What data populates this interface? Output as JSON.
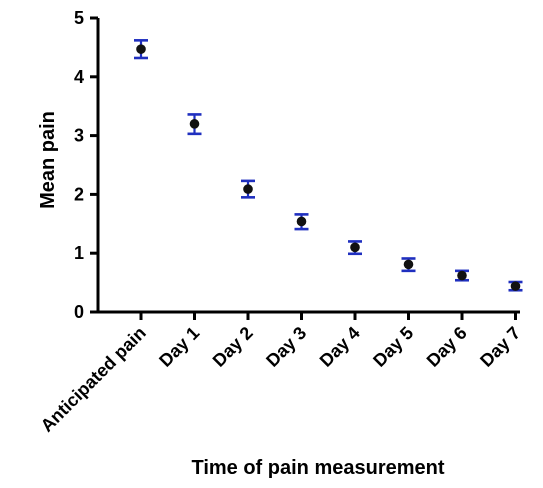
{
  "chart_data": {
    "type": "scatter",
    "title": "",
    "xlabel": "Time of pain measurement",
    "ylabel": "Mean pain",
    "categories": [
      "Anticipated pain",
      "Day 1",
      "Day 2",
      "Day 3",
      "Day 4",
      "Day 5",
      "Day 6",
      "Day 7"
    ],
    "series": [
      {
        "values": [
          4.47,
          3.2,
          2.09,
          1.54,
          1.1,
          0.81,
          0.62,
          0.44
        ],
        "error_low": [
          4.32,
          3.03,
          1.95,
          1.41,
          0.99,
          0.7,
          0.54,
          0.37
        ],
        "error_high": [
          4.62,
          3.36,
          2.23,
          1.66,
          1.2,
          0.91,
          0.7,
          0.51
        ],
        "marker_color": "#111111",
        "error_bar_color": "#1f2fbf"
      }
    ],
    "ylim": [
      0,
      5
    ],
    "yticks": [
      "0",
      "1",
      "2",
      "3",
      "4",
      "5"
    ],
    "grid": false,
    "legend": "none",
    "axis_color": "#000000"
  }
}
